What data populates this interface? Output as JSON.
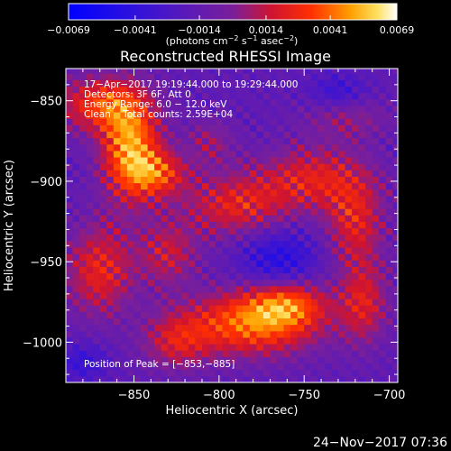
{
  "chart_data": {
    "type": "heatmap",
    "title": "Reconstructed RHESSI Image",
    "xlabel": "Heliocentric X (arcsec)",
    "ylabel": "Heliocentric Y (arcsec)",
    "xlim": [
      -890,
      -695
    ],
    "ylim": [
      -1025,
      -830
    ],
    "x_ticks": [
      -850,
      -800,
      -750,
      -700
    ],
    "y_ticks": [
      -850,
      -900,
      -950,
      -1000
    ],
    "x_tick_labels": [
      "−850",
      "−800",
      "−750",
      "−700"
    ],
    "y_tick_labels": [
      "−850",
      "−900",
      "−950",
      "−1000"
    ],
    "colorbar": {
      "min": -0.0069,
      "max": 0.0069,
      "tick_labels": [
        "−0.0069",
        "−0.0041",
        "−0.0014",
        "0.0014",
        "0.0041",
        "0.0069"
      ],
      "tick_values": [
        -0.0069,
        -0.0041,
        -0.0014,
        0.0014,
        0.0041,
        0.0069
      ],
      "unit_prefix": "(photons cm",
      "unit_exp1": "−2",
      "unit_mid": " s",
      "unit_exp2": "−1",
      "unit_mid2": " asec",
      "unit_exp3": "−2",
      "unit_suffix": ")"
    },
    "annotations": {
      "time_range": "17−Apr−2017 19:19:44.000 to 19:29:44.000",
      "detectors": "Detectors: 3F 6F, Att 0",
      "energy": "Energy Range: 6.0 − 12.0 keV",
      "clean": "Clean    Total counts: 2.59E+04",
      "peak": "Position of Peak = [−853,−885]"
    },
    "image_cell_arcsec": 4,
    "hot_regions": [
      {
        "x": -852,
        "y": -880,
        "sx": 12,
        "sy": 22,
        "amp": 0.0065
      },
      {
        "x": -870,
        "y": -852,
        "sx": 18,
        "sy": 12,
        "amp": 0.0045
      },
      {
        "x": -835,
        "y": -895,
        "sx": 12,
        "sy": 10,
        "amp": 0.004
      },
      {
        "x": -780,
        "y": -988,
        "sx": 28,
        "sy": 14,
        "amp": 0.0058
      },
      {
        "x": -760,
        "y": -975,
        "sx": 16,
        "sy": 10,
        "amp": 0.004
      },
      {
        "x": -790,
        "y": -915,
        "sx": 22,
        "sy": 14,
        "amp": 0.0038
      },
      {
        "x": -745,
        "y": -898,
        "sx": 22,
        "sy": 14,
        "amp": 0.0036
      },
      {
        "x": -720,
        "y": -925,
        "sx": 12,
        "sy": 20,
        "amp": 0.0036
      },
      {
        "x": -715,
        "y": -975,
        "sx": 10,
        "sy": 18,
        "amp": 0.0034
      },
      {
        "x": -870,
        "y": -955,
        "sx": 14,
        "sy": 20,
        "amp": 0.004
      },
      {
        "x": -830,
        "y": -945,
        "sx": 12,
        "sy": 14,
        "amp": 0.003
      },
      {
        "x": -825,
        "y": -1000,
        "sx": 14,
        "sy": 12,
        "amp": 0.003
      },
      {
        "x": -725,
        "y": -860,
        "sx": 18,
        "sy": 10,
        "amp": 0.002
      },
      {
        "x": -805,
        "y": -875,
        "sx": 10,
        "sy": 10,
        "amp": 0.002
      }
    ],
    "background_level": -0.0016,
    "cold_regions": [
      {
        "x": -765,
        "y": -948,
        "sx": 16,
        "sy": 14,
        "amp": -0.003
      },
      {
        "x": -730,
        "y": -845,
        "sx": 12,
        "sy": 8,
        "amp": -0.0022
      },
      {
        "x": -880,
        "y": -1012,
        "sx": 10,
        "sy": 8,
        "amp": -0.0022
      }
    ]
  },
  "footer": {
    "date": "24−Nov−2017 07:36"
  },
  "colors": {
    "axis": "#ffffff",
    "background": "#000000"
  }
}
